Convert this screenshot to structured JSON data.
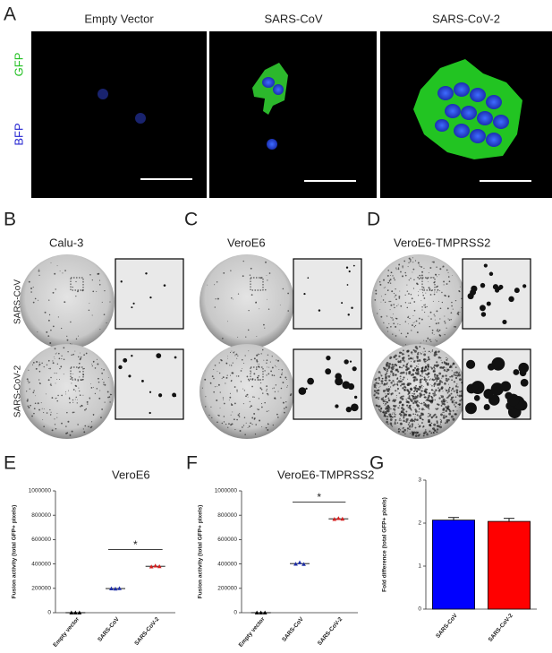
{
  "panels": {
    "labels": [
      "A",
      "B",
      "C",
      "D",
      "E",
      "F",
      "G"
    ]
  },
  "panel_a": {
    "titles": [
      "Empty Vector",
      "SARS-CoV",
      "SARS-CoV-2"
    ],
    "channels": [
      "GFP",
      "BFP"
    ]
  },
  "panels_bcd": {
    "cells": [
      "Calu-3",
      "VeroE6",
      "VeroE6-TMPRSS2"
    ],
    "rows": [
      "SARS-CoV",
      "SARS-CoV-2"
    ]
  },
  "chart_data": [
    {
      "type": "dot",
      "title": "VeroE6",
      "ylabel": "Fusion activity (total GFP+ pixels)",
      "categories": [
        "Empty vector",
        "SARS-CoV",
        "SARS-CoV-2"
      ],
      "values": [
        [
          0,
          0,
          0
        ],
        [
          198000,
          196000,
          200000
        ],
        [
          378000,
          385000,
          380000
        ]
      ],
      "means": [
        0,
        198000,
        381000
      ],
      "colors": [
        "#000000",
        "#1f2fa8",
        "#d62020"
      ],
      "ylim": [
        0,
        1000000
      ],
      "yticks": [
        0,
        200000,
        400000,
        600000,
        800000,
        1000000
      ],
      "annotation": "*"
    },
    {
      "type": "dot",
      "title": "VeroE6-TMPRSS2",
      "ylabel": "Fusion activity (total GFP+ pixels)",
      "categories": [
        "Empty vector",
        "SARS-CoV",
        "SARS-CoV-2"
      ],
      "values": [
        [
          0,
          0,
          0
        ],
        [
          400000,
          412000,
          398000
        ],
        [
          768000,
          775000,
          770000
        ]
      ],
      "means": [
        0,
        403000,
        771000
      ],
      "colors": [
        "#000000",
        "#1f2fa8",
        "#d62020"
      ],
      "ylim": [
        0,
        1000000
      ],
      "yticks": [
        0,
        200000,
        400000,
        600000,
        800000,
        1000000
      ],
      "annotation": "*"
    },
    {
      "type": "bar",
      "ylabel": "Fold difference (total GFP+ pixels)",
      "categories": [
        "SARS-CoV",
        "SARS-CoV-2"
      ],
      "values": [
        2.07,
        2.04
      ],
      "errors": [
        0.06,
        0.07
      ],
      "colors": [
        "#0000ff",
        "#ff0000"
      ],
      "ylim": [
        0,
        3
      ],
      "yticks": [
        0,
        1,
        2,
        3
      ]
    }
  ]
}
